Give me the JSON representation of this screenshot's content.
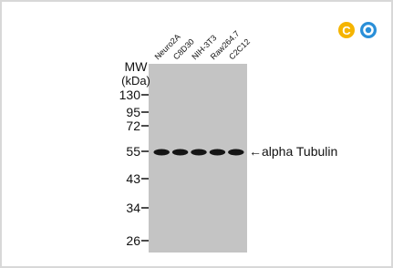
{
  "blot": {
    "lanes": [
      "Neuro2A",
      "C8D30",
      "NIH-3T3",
      "Raw264.7",
      "C2C12"
    ],
    "mw_title": "MW",
    "mw_unit": "(kDa)",
    "markers": [
      130,
      95,
      72,
      55,
      43,
      34,
      26
    ],
    "band_label": "alpha Tubulin"
  }
}
